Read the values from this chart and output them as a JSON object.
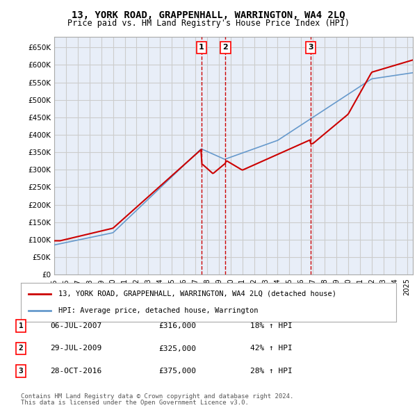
{
  "title": "13, YORK ROAD, GRAPPENHALL, WARRINGTON, WA4 2LQ",
  "subtitle": "Price paid vs. HM Land Registry's House Price Index (HPI)",
  "ylabel_ticks": [
    0,
    50000,
    100000,
    150000,
    200000,
    250000,
    300000,
    350000,
    400000,
    450000,
    500000,
    550000,
    600000,
    650000
  ],
  "ylim": [
    0,
    680000
  ],
  "xlim_start": 1995.0,
  "xlim_end": 2025.5,
  "red_line_label": "13, YORK ROAD, GRAPPENHALL, WARRINGTON, WA4 2LQ (detached house)",
  "blue_line_label": "HPI: Average price, detached house, Warrington",
  "transactions": [
    {
      "num": 1,
      "date": "06-JUL-2007",
      "price": 316000,
      "pct": "18%",
      "dir": "↑",
      "x_year": 2007.52
    },
    {
      "num": 2,
      "date": "29-JUL-2009",
      "price": 325000,
      "pct": "42%",
      "dir": "↑",
      "x_year": 2009.57
    },
    {
      "num": 3,
      "date": "28-OCT-2016",
      "price": 375000,
      "pct": "28%",
      "dir": "↑",
      "x_year": 2016.82
    }
  ],
  "footnote1": "Contains HM Land Registry data © Crown copyright and database right 2024.",
  "footnote2": "This data is licensed under the Open Government Licence v3.0.",
  "bg_color": "#ffffff",
  "grid_color": "#cccccc",
  "plot_bg": "#e8eef8",
  "red_color": "#cc0000",
  "blue_color": "#6699cc",
  "dashed_color": "#cc0000"
}
